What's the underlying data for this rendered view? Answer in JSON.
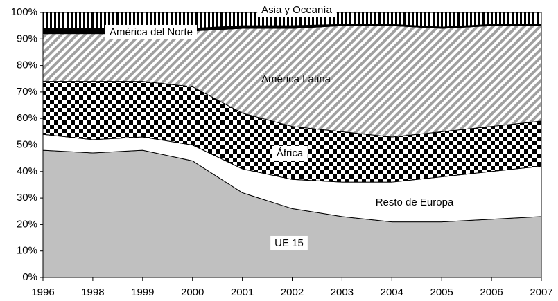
{
  "chart_data": {
    "type": "stacked_area",
    "categories": [
      "1996",
      "1998",
      "1999",
      "2000",
      "2001",
      "2002",
      "2003",
      "2004",
      "2005",
      "2006",
      "2007"
    ],
    "series": [
      {
        "name": "UE 15",
        "color": "#c0c0c0",
        "pattern": "solid",
        "values": [
          48,
          47,
          48,
          44,
          32,
          26,
          23,
          21,
          21,
          22,
          23
        ]
      },
      {
        "name": "Resto de Europa",
        "color": "#ffffff",
        "pattern": "solid",
        "values": [
          6,
          5,
          5,
          6,
          9,
          11,
          13,
          15,
          17,
          18,
          19
        ]
      },
      {
        "name": "África",
        "color": "#000000",
        "pattern": "checker",
        "values": [
          20,
          22,
          21,
          22,
          21,
          20,
          19,
          17,
          17,
          17,
          17
        ]
      },
      {
        "name": "América Latina",
        "color": "#a0a0a0",
        "pattern": "diagonal",
        "values": [
          18,
          18,
          18,
          21,
          32,
          37,
          40,
          42,
          39,
          38,
          36
        ]
      },
      {
        "name": "América del Norte",
        "color": "#000000",
        "pattern": "solid",
        "values": [
          2,
          2,
          2,
          1,
          1,
          1,
          0.5,
          0.5,
          0.5,
          0.5,
          0.5
        ]
      },
      {
        "name": "Asia y Oceanía",
        "color": "#000000",
        "pattern": "vertical",
        "values": [
          6,
          6,
          6,
          6,
          5,
          5,
          4.5,
          4.5,
          5.5,
          4.5,
          4.5
        ]
      }
    ],
    "ylim": [
      0,
      100
    ],
    "yticks": [
      {
        "value": 0,
        "label": "0%"
      },
      {
        "value": 10,
        "label": "10%"
      },
      {
        "value": 20,
        "label": "20%"
      },
      {
        "value": 30,
        "label": "30%"
      },
      {
        "value": 40,
        "label": "40%"
      },
      {
        "value": 50,
        "label": "50%"
      },
      {
        "value": 60,
        "label": "60%"
      },
      {
        "value": 70,
        "label": "70%"
      },
      {
        "value": 80,
        "label": "80%"
      },
      {
        "value": 90,
        "label": "90%"
      },
      {
        "value": 100,
        "label": "100%"
      }
    ],
    "grid": false
  }
}
